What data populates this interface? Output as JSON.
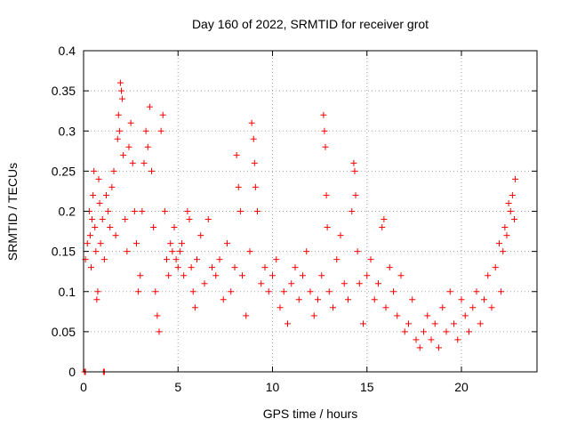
{
  "chart_data": {
    "type": "scatter",
    "title": "Day 160 of 2022, SRMTID for receiver grot",
    "xlabel": "GPS time / hours",
    "ylabel": "SRMTID / TECUs",
    "xlim": [
      0,
      24
    ],
    "ylim": [
      0,
      0.4
    ],
    "xticks": [
      0,
      5,
      10,
      15,
      20
    ],
    "yticks": [
      0,
      0.05,
      0.1,
      0.15,
      0.2,
      0.25,
      0.3,
      0.35,
      0.4
    ],
    "xtick_labels": [
      "0",
      "5",
      "10",
      "15",
      "20"
    ],
    "ytick_labels": [
      "0",
      "0.05",
      "0.1",
      "0.15",
      "0.2",
      "0.25",
      "0.3",
      "0.35",
      "0.4"
    ],
    "grid": true,
    "marker": "+",
    "color": "#ff0000",
    "series": [
      {
        "points": [
          [
            0.05,
            0.0
          ],
          [
            0.1,
            0.0
          ],
          [
            1.05,
            0.0
          ],
          [
            1.1,
            0.0
          ],
          [
            0.1,
            0.14
          ],
          [
            0.2,
            0.16
          ],
          [
            0.3,
            0.2
          ],
          [
            0.35,
            0.17
          ],
          [
            0.4,
            0.13
          ],
          [
            0.45,
            0.19
          ],
          [
            0.5,
            0.22
          ],
          [
            0.55,
            0.25
          ],
          [
            0.6,
            0.18
          ],
          [
            0.65,
            0.15
          ],
          [
            0.7,
            0.09
          ],
          [
            0.75,
            0.1
          ],
          [
            0.8,
            0.24
          ],
          [
            0.85,
            0.21
          ],
          [
            0.9,
            0.16
          ],
          [
            1.0,
            0.19
          ],
          [
            1.1,
            0.14
          ],
          [
            1.2,
            0.22
          ],
          [
            1.3,
            0.2
          ],
          [
            1.4,
            0.18
          ],
          [
            1.5,
            0.23
          ],
          [
            1.6,
            0.25
          ],
          [
            1.7,
            0.17
          ],
          [
            1.8,
            0.29
          ],
          [
            1.85,
            0.32
          ],
          [
            1.9,
            0.3
          ],
          [
            1.95,
            0.36
          ],
          [
            2.0,
            0.35
          ],
          [
            2.05,
            0.34
          ],
          [
            2.1,
            0.27
          ],
          [
            2.2,
            0.19
          ],
          [
            2.3,
            0.15
          ],
          [
            2.4,
            0.28
          ],
          [
            2.5,
            0.31
          ],
          [
            2.6,
            0.26
          ],
          [
            2.7,
            0.2
          ],
          [
            2.8,
            0.16
          ],
          [
            2.9,
            0.1
          ],
          [
            3.0,
            0.12
          ],
          [
            3.1,
            0.2
          ],
          [
            3.2,
            0.26
          ],
          [
            3.3,
            0.3
          ],
          [
            3.4,
            0.28
          ],
          [
            3.5,
            0.33
          ],
          [
            3.6,
            0.25
          ],
          [
            3.7,
            0.18
          ],
          [
            3.8,
            0.1
          ],
          [
            3.9,
            0.07
          ],
          [
            4.0,
            0.05
          ],
          [
            4.1,
            0.3
          ],
          [
            4.2,
            0.32
          ],
          [
            4.3,
            0.2
          ],
          [
            4.4,
            0.14
          ],
          [
            4.5,
            0.12
          ],
          [
            4.6,
            0.16
          ],
          [
            4.7,
            0.15
          ],
          [
            4.8,
            0.18
          ],
          [
            4.9,
            0.14
          ],
          [
            5.0,
            0.13
          ],
          [
            5.1,
            0.15
          ],
          [
            5.2,
            0.16
          ],
          [
            5.3,
            0.12
          ],
          [
            5.5,
            0.2
          ],
          [
            5.6,
            0.19
          ],
          [
            5.7,
            0.13
          ],
          [
            5.8,
            0.1
          ],
          [
            5.9,
            0.08
          ],
          [
            6.0,
            0.14
          ],
          [
            6.2,
            0.17
          ],
          [
            6.4,
            0.11
          ],
          [
            6.6,
            0.19
          ],
          [
            6.8,
            0.13
          ],
          [
            7.0,
            0.12
          ],
          [
            7.2,
            0.14
          ],
          [
            7.4,
            0.09
          ],
          [
            7.6,
            0.16
          ],
          [
            7.8,
            0.1
          ],
          [
            8.0,
            0.13
          ],
          [
            8.1,
            0.27
          ],
          [
            8.2,
            0.23
          ],
          [
            8.3,
            0.2
          ],
          [
            8.4,
            0.12
          ],
          [
            8.6,
            0.07
          ],
          [
            8.8,
            0.15
          ],
          [
            8.9,
            0.31
          ],
          [
            9.0,
            0.29
          ],
          [
            9.05,
            0.26
          ],
          [
            9.1,
            0.23
          ],
          [
            9.2,
            0.2
          ],
          [
            9.4,
            0.11
          ],
          [
            9.6,
            0.13
          ],
          [
            9.8,
            0.1
          ],
          [
            10.0,
            0.12
          ],
          [
            10.2,
            0.14
          ],
          [
            10.4,
            0.08
          ],
          [
            10.6,
            0.1
          ],
          [
            10.8,
            0.06
          ],
          [
            11.0,
            0.11
          ],
          [
            11.2,
            0.13
          ],
          [
            11.4,
            0.09
          ],
          [
            11.6,
            0.12
          ],
          [
            11.8,
            0.15
          ],
          [
            12.0,
            0.1
          ],
          [
            12.2,
            0.07
          ],
          [
            12.4,
            0.09
          ],
          [
            12.6,
            0.12
          ],
          [
            12.7,
            0.32
          ],
          [
            12.75,
            0.3
          ],
          [
            12.8,
            0.28
          ],
          [
            12.85,
            0.22
          ],
          [
            12.9,
            0.18
          ],
          [
            13.0,
            0.1
          ],
          [
            13.2,
            0.08
          ],
          [
            13.4,
            0.14
          ],
          [
            13.6,
            0.17
          ],
          [
            13.8,
            0.11
          ],
          [
            14.0,
            0.09
          ],
          [
            14.2,
            0.2
          ],
          [
            14.3,
            0.26
          ],
          [
            14.35,
            0.25
          ],
          [
            14.4,
            0.22
          ],
          [
            14.5,
            0.15
          ],
          [
            14.6,
            0.11
          ],
          [
            14.8,
            0.06
          ],
          [
            15.0,
            0.12
          ],
          [
            15.2,
            0.14
          ],
          [
            15.4,
            0.09
          ],
          [
            15.6,
            0.11
          ],
          [
            15.8,
            0.18
          ],
          [
            15.9,
            0.19
          ],
          [
            16.0,
            0.08
          ],
          [
            16.2,
            0.13
          ],
          [
            16.4,
            0.1
          ],
          [
            16.6,
            0.07
          ],
          [
            16.8,
            0.12
          ],
          [
            17.0,
            0.05
          ],
          [
            17.2,
            0.06
          ],
          [
            17.4,
            0.09
          ],
          [
            17.6,
            0.04
          ],
          [
            17.8,
            0.03
          ],
          [
            18.0,
            0.05
          ],
          [
            18.2,
            0.07
          ],
          [
            18.4,
            0.04
          ],
          [
            18.6,
            0.06
          ],
          [
            18.8,
            0.03
          ],
          [
            19.0,
            0.08
          ],
          [
            19.2,
            0.05
          ],
          [
            19.4,
            0.1
          ],
          [
            19.6,
            0.06
          ],
          [
            19.8,
            0.04
          ],
          [
            20.0,
            0.09
          ],
          [
            20.2,
            0.07
          ],
          [
            20.4,
            0.05
          ],
          [
            20.6,
            0.08
          ],
          [
            20.8,
            0.1
          ],
          [
            21.0,
            0.06
          ],
          [
            21.2,
            0.09
          ],
          [
            21.4,
            0.12
          ],
          [
            21.6,
            0.08
          ],
          [
            21.8,
            0.13
          ],
          [
            22.0,
            0.16
          ],
          [
            22.1,
            0.1
          ],
          [
            22.2,
            0.15
          ],
          [
            22.3,
            0.18
          ],
          [
            22.4,
            0.17
          ],
          [
            22.5,
            0.21
          ],
          [
            22.6,
            0.2
          ],
          [
            22.7,
            0.22
          ],
          [
            22.8,
            0.19
          ],
          [
            22.85,
            0.24
          ]
        ]
      }
    ]
  }
}
